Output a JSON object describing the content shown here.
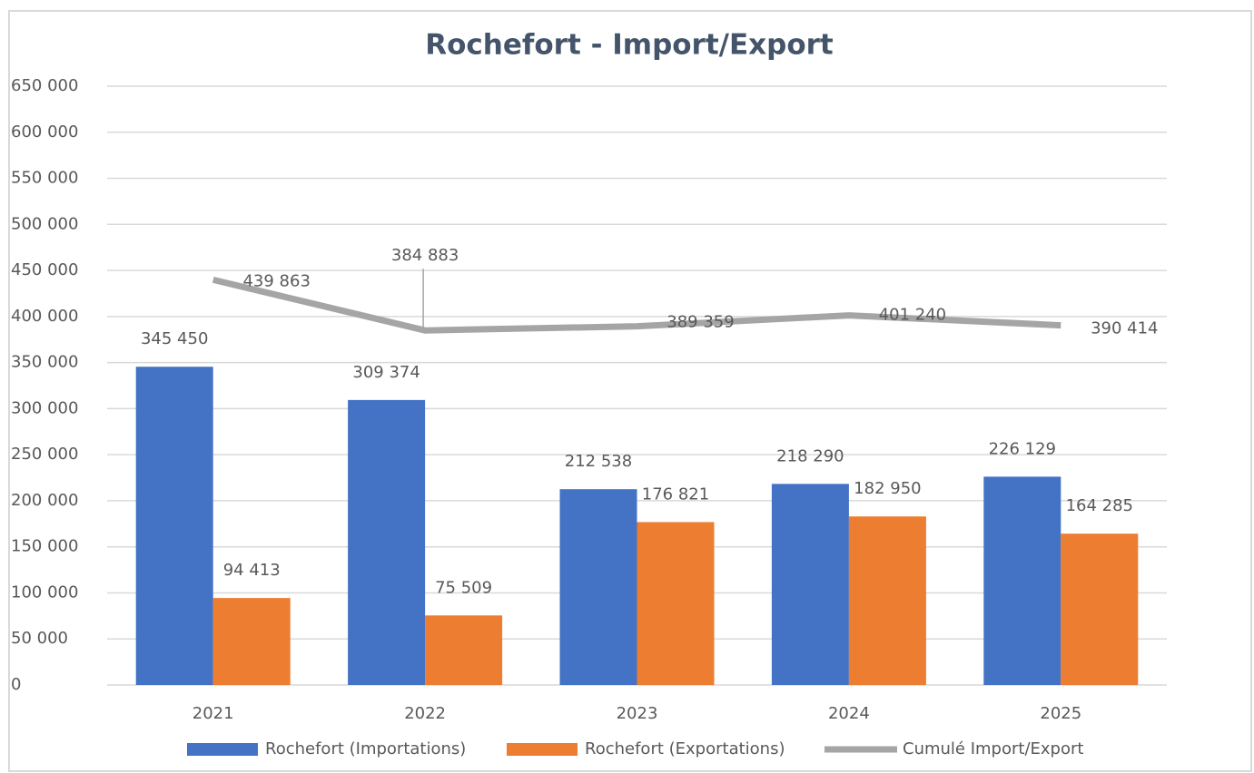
{
  "chart_data": {
    "type": "bar",
    "title": "Rochefort - Import/Export",
    "categories": [
      "2021",
      "2022",
      "2023",
      "2024",
      "2025"
    ],
    "series": [
      {
        "name": "Rochefort (Importations)",
        "type": "bar",
        "color": "#4472c4",
        "values": [
          345450,
          309374,
          212538,
          218290,
          226129
        ],
        "value_labels": [
          "345 450",
          "309 374",
          "212 538",
          "218 290",
          "226 129"
        ]
      },
      {
        "name": "Rochefort (Exportations)",
        "type": "bar",
        "color": "#ed7d31",
        "values": [
          94413,
          75509,
          176821,
          182950,
          164285
        ],
        "value_labels": [
          "94 413",
          "75 509",
          "176 821",
          "182 950",
          "164 285"
        ]
      },
      {
        "name": "Cumulé Import/Export",
        "type": "line",
        "color": "#a5a5a5",
        "values": [
          439863,
          384883,
          389359,
          401240,
          390414
        ],
        "value_labels": [
          "439 863",
          "384 883",
          "389 359",
          "401 240",
          "390 414"
        ]
      }
    ],
    "ylim": [
      0,
      650000
    ],
    "yticks": [
      0,
      {
        "value": 50000,
        "label": "50 000"
      },
      {
        "value": 100000,
        "label": "100 000"
      },
      {
        "value": 150000,
        "label": "150 000"
      },
      {
        "value": 200000,
        "label": "200 000"
      },
      {
        "value": 250000,
        "label": "250 000"
      },
      {
        "value": 300000,
        "label": "300 000"
      },
      {
        "value": 350000,
        "label": "350 000"
      },
      {
        "value": 400000,
        "label": "400 000"
      },
      {
        "value": 450000,
        "label": "450 000"
      },
      {
        "value": 500000,
        "label": "500 000"
      },
      {
        "value": 550000,
        "label": "550 000"
      },
      {
        "value": 600000,
        "label": "600 000"
      },
      {
        "value": 650000,
        "label": "650 000"
      }
    ],
    "grid": true,
    "legend": "bottom"
  }
}
